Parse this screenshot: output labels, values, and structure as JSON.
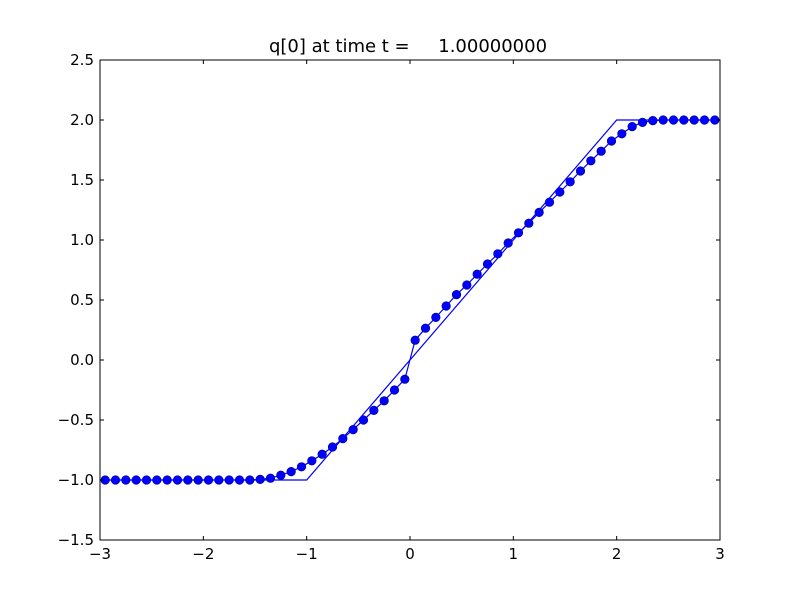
{
  "chart_data": {
    "type": "line",
    "title": "q[0] at time t =     1.00000000",
    "xlabel": "",
    "ylabel": "",
    "xlim": [
      -3,
      3
    ],
    "ylim": [
      -1.5,
      2.5
    ],
    "xticks": [
      -3,
      -2,
      -1,
      0,
      1,
      2,
      3
    ],
    "xtick_labels": [
      "−3",
      "−2",
      "−1",
      "0",
      "1",
      "2",
      "3"
    ],
    "yticks": [
      -1.5,
      -1.0,
      -0.5,
      0.0,
      0.5,
      1.0,
      1.5,
      2.0,
      2.5
    ],
    "ytick_labels": [
      "−1.5",
      "−1.0",
      "−0.5",
      "0.0",
      "0.5",
      "1.0",
      "1.5",
      "2.0",
      "2.5"
    ],
    "grid": false,
    "colors": {
      "series": "#0000ff",
      "axes": "#000000"
    },
    "series": [
      {
        "style": "markers",
        "x": [
          -2.95,
          -2.85,
          -2.75,
          -2.65,
          -2.55,
          -2.45,
          -2.35,
          -2.25,
          -2.15,
          -2.05,
          -1.95,
          -1.85,
          -1.75,
          -1.65,
          -1.55,
          -1.45,
          -1.35,
          -1.25,
          -1.15,
          -1.05,
          -0.95,
          -0.85,
          -0.75,
          -0.65,
          -0.55,
          -0.45,
          -0.35,
          -0.25,
          -0.15,
          -0.05,
          0.05,
          0.15,
          0.25,
          0.35,
          0.45,
          0.55,
          0.65,
          0.75,
          0.85,
          0.95,
          1.05,
          1.15,
          1.25,
          1.35,
          1.45,
          1.55,
          1.65,
          1.75,
          1.85,
          1.95,
          2.05,
          2.15,
          2.25,
          2.35,
          2.45,
          2.55,
          2.65,
          2.75,
          2.85,
          2.95
        ],
        "y": [
          -1.0,
          -1.0,
          -1.0,
          -1.0,
          -1.0,
          -1.0,
          -1.0,
          -1.0,
          -1.0,
          -1.0,
          -1.0,
          -1.0,
          -1.0,
          -1.0,
          -1.0,
          -0.995,
          -0.985,
          -0.96,
          -0.93,
          -0.89,
          -0.84,
          -0.785,
          -0.725,
          -0.655,
          -0.58,
          -0.5,
          -0.42,
          -0.34,
          -0.25,
          -0.16,
          0.165,
          0.265,
          0.355,
          0.45,
          0.545,
          0.625,
          0.715,
          0.8,
          0.885,
          0.975,
          1.06,
          1.14,
          1.23,
          1.315,
          1.4,
          1.485,
          1.575,
          1.66,
          1.74,
          1.825,
          1.885,
          1.945,
          1.98,
          1.995,
          2.0,
          2.0,
          2.0,
          2.0,
          2.0,
          2.0
        ]
      },
      {
        "style": "line",
        "x": [
          -3,
          -1,
          2,
          3
        ],
        "y": [
          -1,
          -1,
          2,
          2
        ]
      }
    ]
  }
}
